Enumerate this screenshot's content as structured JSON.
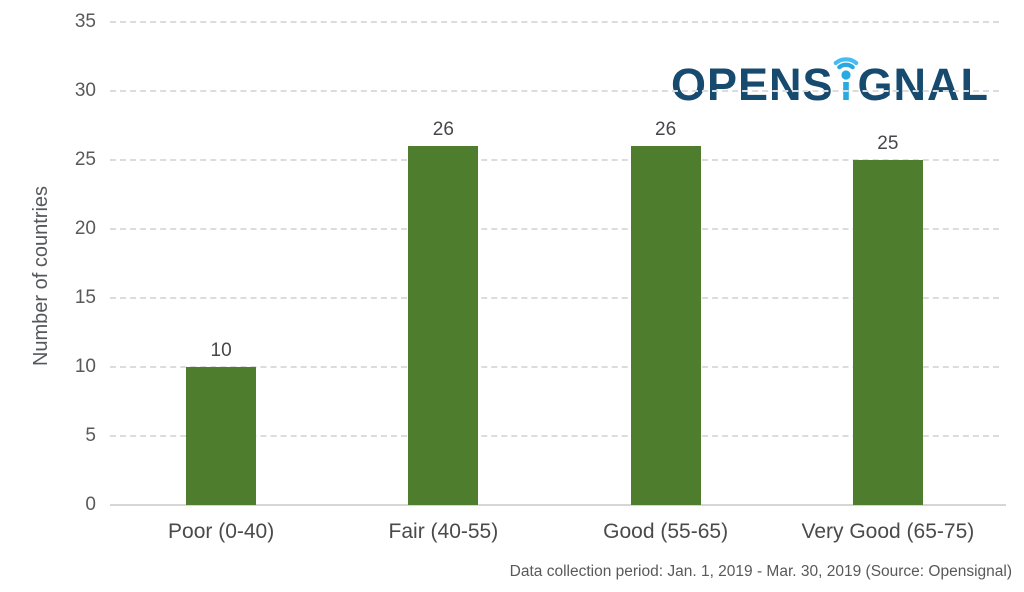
{
  "brand": {
    "name": "OPENSIGNAL",
    "text_before_i": "OPENS",
    "text_after_i": "GNAL"
  },
  "colors": {
    "logo_navy": "#164a6e",
    "logo_blue": "#29a9e1",
    "logo_blue_light": "#45bdf2",
    "bar_green": "#4e7e2d",
    "grid_gray": "#dcdcdc"
  },
  "chart_data": {
    "type": "bar",
    "title": "",
    "categories": [
      "Poor (0-40)",
      "Fair (40-55)",
      "Good (55-65)",
      "Very Good (65-75)"
    ],
    "values": [
      10,
      26,
      26,
      25
    ],
    "xlabel": "",
    "ylabel": "Number of countries",
    "ylim": [
      0,
      35
    ],
    "yticks": [
      0,
      5,
      10,
      15,
      20,
      25,
      30,
      35
    ],
    "grid": "horizontal dashed",
    "legend": "none",
    "value_labels_shown": true
  },
  "footer": {
    "caption": "Data collection period: Jan. 1, 2019 - Mar. 30, 2019 (Source: Opensignal)"
  }
}
